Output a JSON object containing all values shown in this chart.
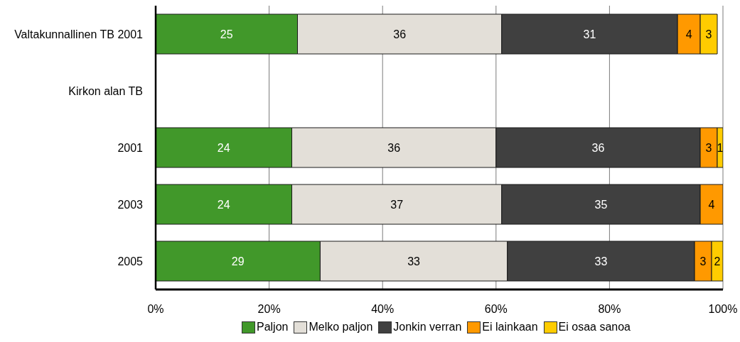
{
  "chart_data": {
    "type": "bar",
    "orientation": "horizontal",
    "stacked": true,
    "categories": [
      "Valtakunnallinen TB 2001",
      "Kirkon alan TB",
      "2001",
      "2003",
      "2005"
    ],
    "series": [
      {
        "name": "Paljon",
        "color": "#41982a",
        "values": [
          25,
          null,
          24,
          24,
          29
        ]
      },
      {
        "name": "Melko paljon",
        "color": "#e3dfd8",
        "values": [
          36,
          null,
          36,
          37,
          33
        ]
      },
      {
        "name": "Jonkin verran",
        "color": "#404040",
        "values": [
          31,
          null,
          36,
          35,
          33
        ]
      },
      {
        "name": "Ei lainkaan",
        "color": "#ff9900",
        "values": [
          4,
          null,
          3,
          4,
          3
        ]
      },
      {
        "name": "Ei osaa sanoa",
        "color": "#ffcc00",
        "values": [
          3,
          null,
          1,
          null,
          2
        ]
      }
    ],
    "xlim": [
      0,
      100
    ],
    "xticks": [
      {
        "value": 0,
        "label": "0%"
      },
      {
        "value": 20,
        "label": "20%"
      },
      {
        "value": 40,
        "label": "40%"
      },
      {
        "value": 60,
        "label": "60%"
      },
      {
        "value": 80,
        "label": "80%"
      },
      {
        "value": 100,
        "label": "100%"
      }
    ],
    "grid": "x",
    "legend": "bottom",
    "data_labels": true
  }
}
